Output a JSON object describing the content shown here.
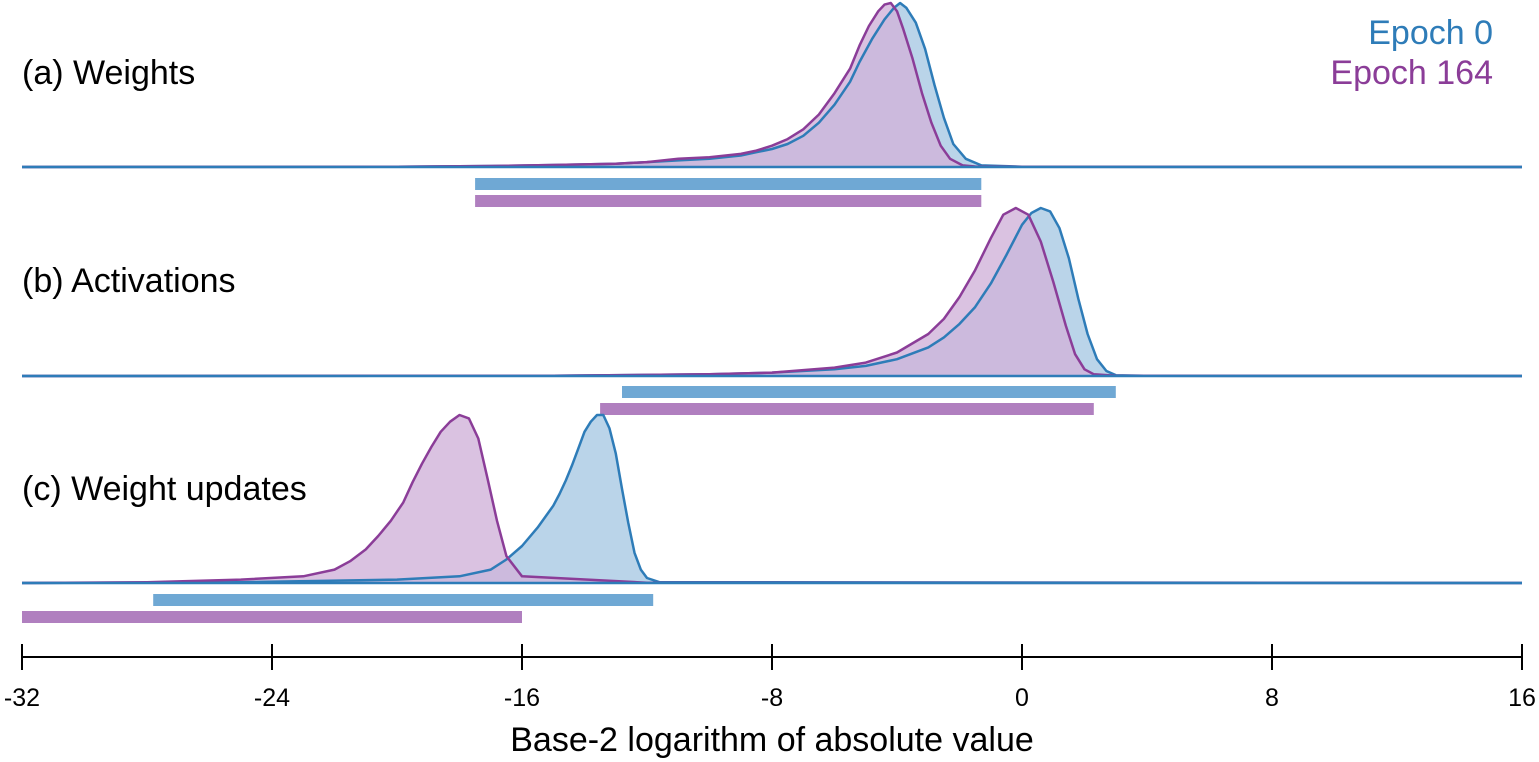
{
  "chart_data": {
    "type": "area",
    "xlabel": "Base-2 logarithm of absolute value",
    "xlim": [
      -32,
      16
    ],
    "xticks": [
      -32,
      -24,
      -16,
      -8,
      0,
      8,
      16
    ],
    "xtick_labels": [
      "-32",
      "-24",
      "-16",
      "-8",
      "0",
      "8",
      "16"
    ],
    "grid": false,
    "legend_position": "top-right",
    "legend": [
      {
        "label": "Epoch 0",
        "color": "#2e7cb8"
      },
      {
        "label": "Epoch 164",
        "color": "#8b3d98"
      }
    ],
    "colors": {
      "epoch0_line": "#2e7cb8",
      "epoch0_fill": "#a9c9e3",
      "epoch0_range": "#6fa8d4",
      "epoch164_line": "#8b3d98",
      "epoch164_fill": "#d1b3da",
      "epoch164_range": "#b07fbf"
    },
    "panels": [
      {
        "label": "(a) Weights",
        "series": [
          {
            "series_key": "epoch0",
            "range": [
              -17.5,
              -1.3
            ],
            "x": [
              -32,
              -20,
              -17,
              -15,
              -13,
              -12,
              -11,
              -10,
              -9,
              -8.5,
              -8,
              -7.5,
              -7,
              -6.5,
              -6,
              -5.5,
              -5.2,
              -4.8,
              -4.4,
              -4.1,
              -3.9,
              -3.7,
              -3.4,
              -3.1,
              -2.8,
              -2.5,
              -2.2,
              -1.8,
              -1.3,
              0,
              16
            ],
            "y": [
              0,
              0.002,
              0.006,
              0.012,
              0.02,
              0.03,
              0.04,
              0.05,
              0.07,
              0.09,
              0.11,
              0.14,
              0.19,
              0.27,
              0.38,
              0.52,
              0.64,
              0.78,
              0.9,
              0.97,
              1.0,
              0.97,
              0.88,
              0.72,
              0.5,
              0.3,
              0.14,
              0.05,
              0.01,
              0.002,
              0
            ]
          },
          {
            "series_key": "epoch164",
            "range": [
              -17.5,
              -1.3
            ],
            "x": [
              -32,
              -20,
              -17,
              -15,
              -13,
              -12,
              -11,
              -10,
              -9,
              -8.5,
              -8,
              -7.5,
              -7,
              -6.5,
              -6,
              -5.5,
              -5.2,
              -4.9,
              -4.6,
              -4.4,
              -4.2,
              -4.0,
              -3.8,
              -3.5,
              -3.2,
              -2.9,
              -2.6,
              -2.3,
              -1.9,
              -1.5,
              0,
              16
            ],
            "y": [
              0,
              0.002,
              0.006,
              0.012,
              0.02,
              0.03,
              0.05,
              0.06,
              0.08,
              0.1,
              0.13,
              0.17,
              0.23,
              0.32,
              0.45,
              0.6,
              0.74,
              0.86,
              0.95,
              0.99,
              1.0,
              0.95,
              0.84,
              0.66,
              0.45,
              0.27,
              0.13,
              0.05,
              0.01,
              0.003,
              0.001,
              0
            ]
          }
        ]
      },
      {
        "label": "(b) Activations",
        "series": [
          {
            "series_key": "epoch0",
            "range": [
              -12.8,
              3.0
            ],
            "x": [
              -32,
              -15,
              -10,
              -8,
              -6,
              -5,
              -4,
              -3,
              -2.5,
              -2,
              -1.5,
              -1,
              -0.5,
              0,
              0.3,
              0.6,
              0.9,
              1.2,
              1.5,
              1.8,
              2.1,
              2.4,
              2.7,
              3.0,
              4,
              16
            ],
            "y": [
              0,
              0.002,
              0.01,
              0.02,
              0.04,
              0.06,
              0.1,
              0.17,
              0.23,
              0.31,
              0.41,
              0.55,
              0.72,
              0.9,
              0.97,
              1.0,
              0.98,
              0.88,
              0.7,
              0.46,
              0.25,
              0.1,
              0.03,
              0.005,
              0.001,
              0
            ]
          },
          {
            "series_key": "epoch164",
            "range": [
              -13.5,
              2.3
            ],
            "x": [
              -32,
              -15,
              -10,
              -8,
              -6,
              -5,
              -4,
              -3,
              -2.5,
              -2,
              -1.5,
              -1,
              -0.6,
              -0.2,
              0.2,
              0.6,
              1.0,
              1.4,
              1.7,
              2.0,
              2.3,
              3,
              16
            ],
            "y": [
              0,
              0.002,
              0.01,
              0.02,
              0.05,
              0.08,
              0.14,
              0.25,
              0.34,
              0.47,
              0.63,
              0.82,
              0.96,
              1.0,
              0.96,
              0.8,
              0.56,
              0.3,
              0.13,
              0.04,
              0.01,
              0.002,
              0
            ]
          }
        ]
      },
      {
        "label": "(c) Weight updates",
        "series": [
          {
            "series_key": "epoch0",
            "range": [
              -27.8,
              -11.8
            ],
            "x": [
              -32,
              -25,
              -20,
              -18,
              -17,
              -16.5,
              -16,
              -15.5,
              -15,
              -14.8,
              -14.6,
              -14.4,
              -14.2,
              -14.0,
              -13.8,
              -13.6,
              -13.4,
              -13.2,
              -13.0,
              -12.8,
              -12.6,
              -12.4,
              -12.2,
              -12.0,
              -11.6,
              16
            ],
            "y": [
              0,
              0.005,
              0.02,
              0.04,
              0.08,
              0.14,
              0.22,
              0.33,
              0.46,
              0.53,
              0.61,
              0.7,
              0.8,
              0.9,
              0.96,
              1.0,
              1.0,
              0.92,
              0.77,
              0.56,
              0.36,
              0.18,
              0.08,
              0.03,
              0.005,
              0
            ]
          },
          {
            "series_key": "epoch164",
            "range": [
              -32.0,
              -16.0
            ],
            "x": [
              -32,
              -28,
              -25,
              -23,
              -22,
              -21.5,
              -21,
              -20.6,
              -20.2,
              -19.8,
              -19.5,
              -19.2,
              -18.9,
              -18.6,
              -18.3,
              -18.0,
              -17.7,
              -17.4,
              -17.1,
              -16.8,
              -16.5,
              -16.0,
              -12,
              16
            ],
            "y": [
              0,
              0.005,
              0.02,
              0.04,
              0.08,
              0.13,
              0.2,
              0.28,
              0.37,
              0.48,
              0.6,
              0.71,
              0.81,
              0.9,
              0.96,
              1.0,
              0.98,
              0.86,
              0.62,
              0.37,
              0.16,
              0.04,
              0.002,
              0
            ]
          }
        ]
      }
    ]
  }
}
